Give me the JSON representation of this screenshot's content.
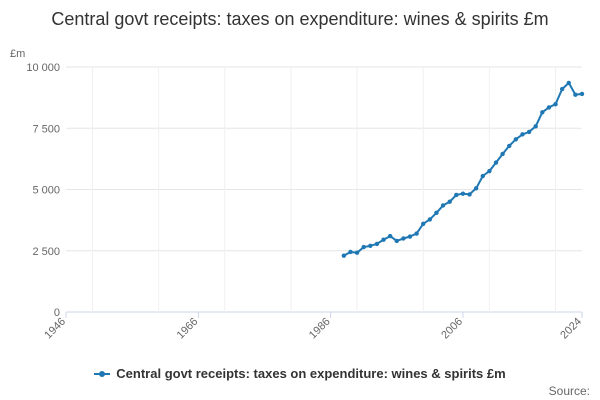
{
  "title": "Central govt receipts: taxes on expenditure: wines & spirits £m",
  "source_label": "Source:",
  "colors": {
    "series": "#1f78b4",
    "grid": "#e6e6e6",
    "axis": "#ccd6eb",
    "text": "#666666"
  },
  "chart_data": {
    "type": "line",
    "title": "Central govt receipts: taxes on expenditure: wines & spirits £m",
    "ylabel": "£m",
    "xlabel": "",
    "xlim": [
      1946,
      2024
    ],
    "ylim": [
      0,
      10000
    ],
    "x_ticks": [
      1946,
      1966,
      1986,
      2006,
      2024
    ],
    "y_ticks": [
      0,
      2500,
      5000,
      7500,
      10000
    ],
    "y_tick_labels": [
      "0",
      "2 500",
      "5 000",
      "7 500",
      "10 000"
    ],
    "grid": true,
    "legend_position": "bottom",
    "series": [
      {
        "name": "Central govt receipts: taxes on expenditure: wines & spirits £m",
        "x": [
          1988,
          1989,
          1990,
          1991,
          1992,
          1993,
          1994,
          1995,
          1996,
          1997,
          1998,
          1999,
          2000,
          2001,
          2002,
          2003,
          2004,
          2005,
          2006,
          2007,
          2008,
          2009,
          2010,
          2011,
          2012,
          2013,
          2014,
          2015,
          2016,
          2017,
          2018,
          2019,
          2020,
          2021,
          2022,
          2023,
          2024
        ],
        "values": [
          2300,
          2450,
          2420,
          2650,
          2700,
          2780,
          2950,
          3100,
          2900,
          3000,
          3080,
          3200,
          3600,
          3780,
          4050,
          4350,
          4500,
          4780,
          4830,
          4800,
          5050,
          5550,
          5750,
          6100,
          6450,
          6780,
          7050,
          7250,
          7350,
          7580,
          8150,
          8350,
          8480,
          9100,
          9350,
          8870,
          8900
        ]
      }
    ]
  },
  "legend": {
    "label": "Central govt receipts: taxes on expenditure: wines & spirits £m"
  }
}
